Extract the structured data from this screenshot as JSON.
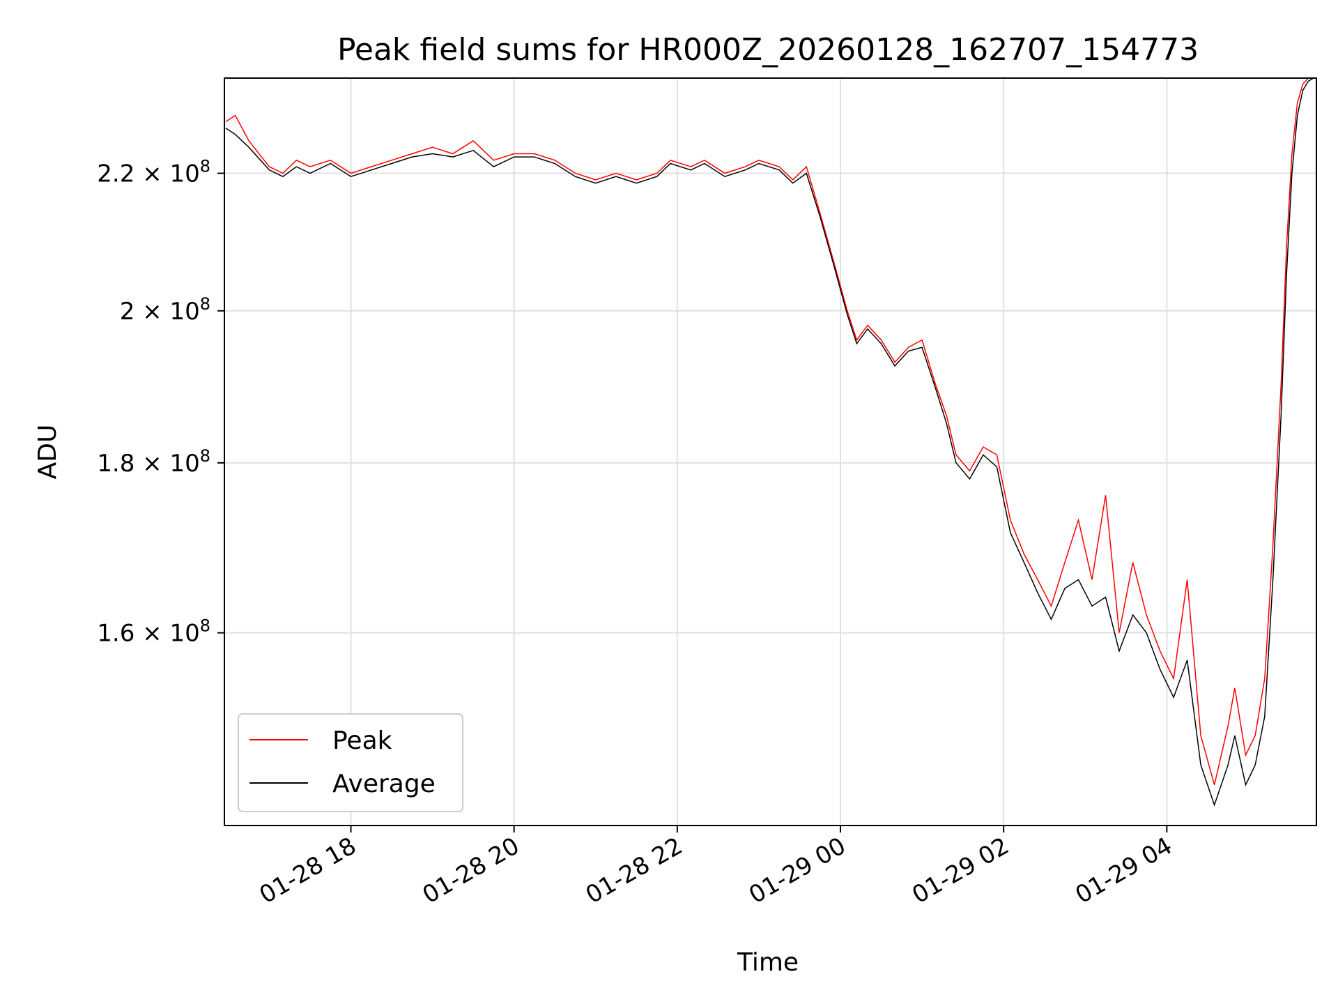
{
  "chart_data": {
    "type": "line",
    "title": "Peak field sums for HR000Z_20260128_162707_154773",
    "xlabel": "Time",
    "ylabel": "ADU",
    "y_scale": "log",
    "xlim": [
      "2026-01-28 16:27",
      "2026-01-29 05:50"
    ],
    "ylim": [
      140000000,
      235000000
    ],
    "grid": true,
    "legend_position": "lower-left",
    "x_ticks": [
      {
        "t": "2026-01-28 18:00",
        "label": "01-28 18"
      },
      {
        "t": "2026-01-28 20:00",
        "label": "01-28 20"
      },
      {
        "t": "2026-01-28 22:00",
        "label": "01-28 22"
      },
      {
        "t": "2026-01-29 00:00",
        "label": "01-29 00"
      },
      {
        "t": "2026-01-29 02:00",
        "label": "01-29 02"
      },
      {
        "t": "2026-01-29 04:00",
        "label": "01-29 04"
      }
    ],
    "y_ticks": [
      {
        "value": 160000000,
        "mantissa": "1.6",
        "exp": "8"
      },
      {
        "value": 180000000,
        "mantissa": "1.8",
        "exp": "8"
      },
      {
        "value": 200000000,
        "mantissa": "2",
        "exp": "8"
      },
      {
        "value": 220000000,
        "mantissa": "2.2",
        "exp": "8"
      }
    ],
    "series": [
      {
        "name": "Peak",
        "color": "#ff0000",
        "x": [
          "2026-01-28 16:28",
          "2026-01-28 16:35",
          "2026-01-28 16:45",
          "2026-01-28 17:00",
          "2026-01-28 17:10",
          "2026-01-28 17:20",
          "2026-01-28 17:30",
          "2026-01-28 17:45",
          "2026-01-28 18:00",
          "2026-01-28 18:15",
          "2026-01-28 18:30",
          "2026-01-28 18:45",
          "2026-01-28 19:00",
          "2026-01-28 19:15",
          "2026-01-28 19:30",
          "2026-01-28 19:45",
          "2026-01-28 20:00",
          "2026-01-28 20:15",
          "2026-01-28 20:30",
          "2026-01-28 20:45",
          "2026-01-28 21:00",
          "2026-01-28 21:15",
          "2026-01-28 21:30",
          "2026-01-28 21:45",
          "2026-01-28 21:55",
          "2026-01-28 22:10",
          "2026-01-28 22:20",
          "2026-01-28 22:35",
          "2026-01-28 22:50",
          "2026-01-28 23:00",
          "2026-01-28 23:15",
          "2026-01-28 23:25",
          "2026-01-28 23:35",
          "2026-01-28 23:45",
          "2026-01-28 23:55",
          "2026-01-29 00:05",
          "2026-01-29 00:12",
          "2026-01-29 00:20",
          "2026-01-29 00:30",
          "2026-01-29 00:40",
          "2026-01-29 00:50",
          "2026-01-29 01:00",
          "2026-01-29 01:10",
          "2026-01-29 01:18",
          "2026-01-29 01:25",
          "2026-01-29 01:35",
          "2026-01-29 01:45",
          "2026-01-29 01:55",
          "2026-01-29 02:05",
          "2026-01-29 02:15",
          "2026-01-29 02:25",
          "2026-01-29 02:35",
          "2026-01-29 02:45",
          "2026-01-29 02:55",
          "2026-01-29 03:05",
          "2026-01-29 03:15",
          "2026-01-29 03:25",
          "2026-01-29 03:35",
          "2026-01-29 03:45",
          "2026-01-29 03:55",
          "2026-01-29 04:05",
          "2026-01-29 04:15",
          "2026-01-29 04:25",
          "2026-01-29 04:35",
          "2026-01-29 04:45",
          "2026-01-29 04:50",
          "2026-01-29 04:58",
          "2026-01-29 05:05",
          "2026-01-29 05:12",
          "2026-01-29 05:18",
          "2026-01-29 05:24",
          "2026-01-29 05:28",
          "2026-01-29 05:32",
          "2026-01-29 05:36",
          "2026-01-29 05:40",
          "2026-01-29 05:44",
          "2026-01-29 05:48"
        ],
        "y": [
          228000000,
          229000000,
          225000000,
          221000000,
          220000000,
          222000000,
          221000000,
          222000000,
          220000000,
          221000000,
          222000000,
          223000000,
          224000000,
          223000000,
          225000000,
          222000000,
          223000000,
          223000000,
          222000000,
          220000000,
          219000000,
          220000000,
          219000000,
          220000000,
          222000000,
          221000000,
          222000000,
          220000000,
          221000000,
          222000000,
          221000000,
          219000000,
          221000000,
          214000000,
          207000000,
          200000000,
          196000000,
          198000000,
          196000000,
          193000000,
          195000000,
          196000000,
          190000000,
          186000000,
          181000000,
          179000000,
          182000000,
          181000000,
          173000000,
          169000000,
          166000000,
          163000000,
          168000000,
          173000000,
          166000000,
          176000000,
          160000000,
          168000000,
          162000000,
          158000000,
          155000000,
          166000000,
          149000000,
          144000000,
          150000000,
          154000000,
          147000000,
          149000000,
          155000000,
          170000000,
          190000000,
          209000000,
          223000000,
          231000000,
          234000000,
          235000000,
          235000000
        ]
      },
      {
        "name": "Average",
        "color": "#000000",
        "x": [
          "2026-01-28 16:28",
          "2026-01-28 16:35",
          "2026-01-28 16:45",
          "2026-01-28 17:00",
          "2026-01-28 17:10",
          "2026-01-28 17:20",
          "2026-01-28 17:30",
          "2026-01-28 17:45",
          "2026-01-28 18:00",
          "2026-01-28 18:15",
          "2026-01-28 18:30",
          "2026-01-28 18:45",
          "2026-01-28 19:00",
          "2026-01-28 19:15",
          "2026-01-28 19:30",
          "2026-01-28 19:45",
          "2026-01-28 20:00",
          "2026-01-28 20:15",
          "2026-01-28 20:30",
          "2026-01-28 20:45",
          "2026-01-28 21:00",
          "2026-01-28 21:15",
          "2026-01-28 21:30",
          "2026-01-28 21:45",
          "2026-01-28 21:55",
          "2026-01-28 22:10",
          "2026-01-28 22:20",
          "2026-01-28 22:35",
          "2026-01-28 22:50",
          "2026-01-28 23:00",
          "2026-01-28 23:15",
          "2026-01-28 23:25",
          "2026-01-28 23:35",
          "2026-01-28 23:45",
          "2026-01-28 23:55",
          "2026-01-29 00:05",
          "2026-01-29 00:12",
          "2026-01-29 00:20",
          "2026-01-29 00:30",
          "2026-01-29 00:40",
          "2026-01-29 00:50",
          "2026-01-29 01:00",
          "2026-01-29 01:10",
          "2026-01-29 01:18",
          "2026-01-29 01:25",
          "2026-01-29 01:35",
          "2026-01-29 01:45",
          "2026-01-29 01:55",
          "2026-01-29 02:05",
          "2026-01-29 02:15",
          "2026-01-29 02:25",
          "2026-01-29 02:35",
          "2026-01-29 02:45",
          "2026-01-29 02:55",
          "2026-01-29 03:05",
          "2026-01-29 03:15",
          "2026-01-29 03:25",
          "2026-01-29 03:35",
          "2026-01-29 03:45",
          "2026-01-29 03:55",
          "2026-01-29 04:05",
          "2026-01-29 04:15",
          "2026-01-29 04:25",
          "2026-01-29 04:35",
          "2026-01-29 04:45",
          "2026-01-29 04:50",
          "2026-01-29 04:58",
          "2026-01-29 05:05",
          "2026-01-29 05:12",
          "2026-01-29 05:18",
          "2026-01-29 05:24",
          "2026-01-29 05:28",
          "2026-01-29 05:32",
          "2026-01-29 05:36",
          "2026-01-29 05:40",
          "2026-01-29 05:44",
          "2026-01-29 05:48"
        ],
        "y": [
          227000000,
          226000000,
          224000000,
          220500000,
          219500000,
          221000000,
          220000000,
          221500000,
          219500000,
          220500000,
          221500000,
          222500000,
          223000000,
          222500000,
          223500000,
          221000000,
          222500000,
          222500000,
          221500000,
          219500000,
          218500000,
          219500000,
          218500000,
          219500000,
          221500000,
          220500000,
          221500000,
          219500000,
          220500000,
          221500000,
          220500000,
          218500000,
          220000000,
          213500000,
          206500000,
          199500000,
          195500000,
          197500000,
          195500000,
          192500000,
          194500000,
          195000000,
          189500000,
          185000000,
          180000000,
          178000000,
          181000000,
          179500000,
          171500000,
          168000000,
          164500000,
          161500000,
          165000000,
          166000000,
          163000000,
          164000000,
          158000000,
          162000000,
          160000000,
          156000000,
          153000000,
          157000000,
          146000000,
          142000000,
          146000000,
          149000000,
          144000000,
          146000000,
          151000000,
          166000000,
          186000000,
          205000000,
          220000000,
          229000000,
          233000000,
          234500000,
          235000000
        ]
      }
    ]
  }
}
